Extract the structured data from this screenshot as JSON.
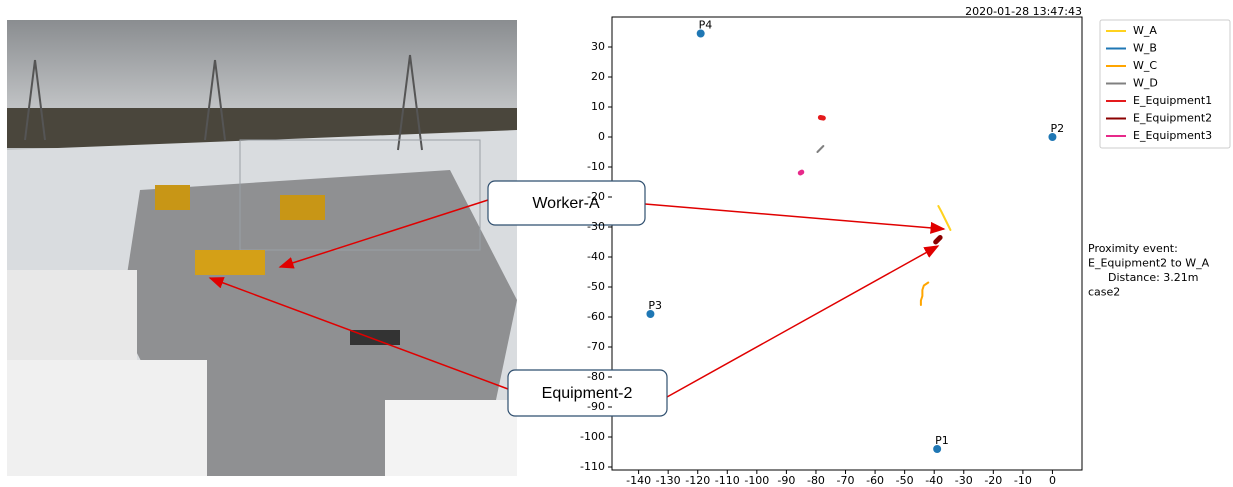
{
  "callouts": {
    "worker": "Worker-A",
    "equipment": "Equipment-2"
  },
  "chart_data": {
    "type": "trajectory",
    "title": "2020-01-28 13:47:43",
    "xlim": [
      -149,
      10
    ],
    "ylim": [
      -111,
      40
    ],
    "xticks": [
      -140,
      -130,
      -120,
      -110,
      -100,
      -90,
      -80,
      -70,
      -60,
      -50,
      -40,
      -30,
      -20,
      -10,
      0
    ],
    "yticks": [
      -110,
      -100,
      -90,
      -80,
      -70,
      -60,
      -50,
      -40,
      -30,
      -20,
      -10,
      0,
      10,
      20,
      30
    ],
    "anchors": {
      "color": "#1f77b4",
      "names": [
        "P1",
        "P2",
        "P3",
        "P4"
      ],
      "x": [
        -39,
        0,
        -136,
        -119
      ],
      "y": [
        -104,
        0,
        -59,
        34.5
      ]
    },
    "series": [
      {
        "name": "W_A",
        "color": "#ffd21f",
        "x": [
          -38.6,
          -37.5,
          -36.5,
          -35.5,
          -34.5
        ],
        "y": [
          -23,
          -25,
          -27,
          -29,
          -31
        ]
      },
      {
        "name": "W_B",
        "color": "#1f77b4",
        "x": [],
        "y": []
      },
      {
        "name": "W_C",
        "color": "#ffa500",
        "x": [
          -42,
          -43.5,
          -44,
          -44,
          -44.5,
          -44.5
        ],
        "y": [
          -48.5,
          -49.5,
          -51,
          -53,
          -54.5,
          -56
        ]
      },
      {
        "name": "W_D",
        "color": "#808080",
        "x": [
          -79.5,
          -78.5,
          -78,
          -77.5
        ],
        "y": [
          -5,
          -4,
          -3.5,
          -3
        ]
      },
      {
        "name": "E_Equipment1",
        "color": "#e41a1c",
        "x": [
          -78.5,
          -77.5
        ],
        "y": [
          6.5,
          6.3
        ]
      },
      {
        "name": "E_Equipment2",
        "color": "#8b0000",
        "x": [
          -39.5,
          -38
        ],
        "y": [
          -35,
          -33.5
        ]
      },
      {
        "name": "E_Equipment3",
        "color": "#e7298a",
        "x": [
          -85.3,
          -84.8
        ],
        "y": [
          -12,
          -11.7
        ]
      }
    ],
    "annotation": [
      "Proximity event:",
      "E_Equipment2 to W_A",
      "Distance: 3.21m",
      "case2"
    ]
  }
}
